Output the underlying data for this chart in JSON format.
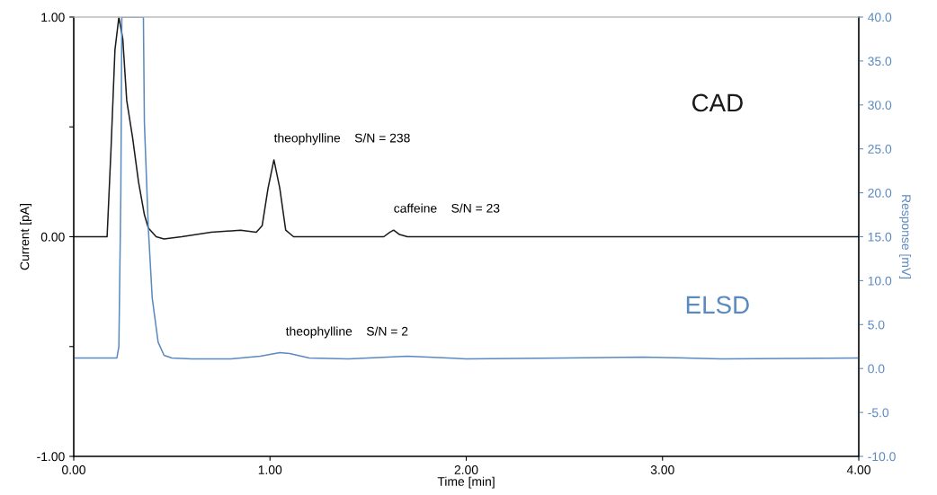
{
  "chart_data": {
    "type": "line",
    "xlabel": "Time [min]",
    "ylabel": "Current [pA]",
    "y2label": "Response [mV]",
    "xlim": [
      0,
      4
    ],
    "xticks": [
      {
        "value": 0,
        "label": "0.00"
      },
      {
        "value": 1,
        "label": "1.00"
      },
      {
        "value": 2,
        "label": "2.00"
      },
      {
        "value": 3,
        "label": "3.00"
      },
      {
        "value": 4,
        "label": "4.00"
      }
    ],
    "ylim": [
      -1,
      1
    ],
    "yticks": [
      {
        "value": -1,
        "label": "-1.00"
      },
      {
        "value": -0.5,
        "label": null
      },
      {
        "value": 0,
        "label": "0.00"
      },
      {
        "value": 0.5,
        "label": null
      },
      {
        "value": 1,
        "label": "1.00"
      }
    ],
    "y2lim": [
      -10,
      40
    ],
    "y2ticks": [
      {
        "value": -10,
        "label": "-10.0"
      },
      {
        "value": -5,
        "label": "-5.0"
      },
      {
        "value": 0,
        "label": "0.0"
      },
      {
        "value": 5,
        "label": "5.0"
      },
      {
        "value": 10,
        "label": "10.0"
      },
      {
        "value": 15,
        "label": "15.0"
      },
      {
        "value": 20,
        "label": "20.0"
      },
      {
        "value": 25,
        "label": "25.0"
      },
      {
        "value": 30,
        "label": "30.0"
      },
      {
        "value": 35,
        "label": "35.0"
      },
      {
        "value": 40,
        "label": "40.0"
      }
    ],
    "grid": false,
    "legend": false,
    "marker": "none",
    "line_style": "solid",
    "series": [
      {
        "name": "CAD",
        "color": "#1a1a1a",
        "x": [
          0,
          0.17,
          0.19,
          0.21,
          0.23,
          0.25,
          0.27,
          0.3,
          0.33,
          0.36,
          0.38,
          0.42,
          0.46,
          0.55,
          0.7,
          0.85,
          0.93,
          0.96,
          0.99,
          1.02,
          1.05,
          1.08,
          1.12,
          1.3,
          1.58,
          1.61,
          1.63,
          1.66,
          1.7,
          2.0,
          3.0,
          4.0
        ],
        "values": [
          0,
          0,
          0.4,
          0.85,
          1.0,
          0.9,
          0.62,
          0.45,
          0.25,
          0.1,
          0.04,
          0.0,
          -0.01,
          0.0,
          0.02,
          0.03,
          0.02,
          0.05,
          0.22,
          0.35,
          0.22,
          0.03,
          0.0,
          0.0,
          0.0,
          0.02,
          0.03,
          0.01,
          0.0,
          0.0,
          0.0,
          0.0
        ]
      },
      {
        "name": "ELSD",
        "color": "#5b8ac0",
        "axis": "y2",
        "x": [
          0,
          0.22,
          0.23,
          0.24,
          0.245,
          0.355,
          0.36,
          0.38,
          0.4,
          0.43,
          0.46,
          0.5,
          0.6,
          0.8,
          0.95,
          1.05,
          1.1,
          1.2,
          1.4,
          1.7,
          2.0,
          2.5,
          2.9,
          3.3,
          4.0
        ],
        "values": [
          1.2,
          1.2,
          2.5,
          20,
          40,
          40,
          28,
          16,
          8,
          3,
          1.5,
          1.2,
          1.1,
          1.1,
          1.4,
          1.8,
          1.7,
          1.2,
          1.1,
          1.4,
          1.1,
          1.2,
          1.3,
          1.1,
          1.2
        ]
      }
    ],
    "annotations": [
      {
        "text": "theophylline    S/N = 238",
        "x": 1.02,
        "y": 0.35
      },
      {
        "text": "caffeine    S/N = 23",
        "x": 1.63,
        "y": 0.03
      },
      {
        "text": "theophylline    S/N = 2",
        "x": 1.08,
        "y": -0.53
      }
    ]
  }
}
